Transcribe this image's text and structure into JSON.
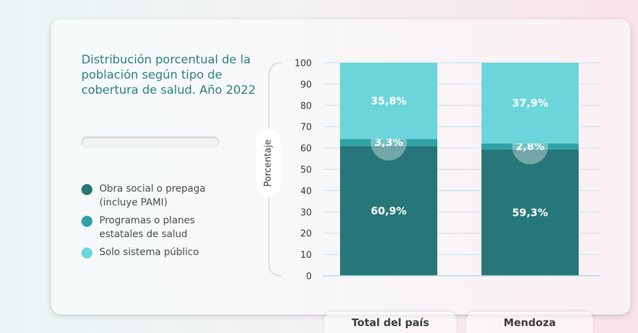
{
  "title": "Distribución porcentual de la población según tipo de cobertura de salud. Año 2022",
  "legend": [
    {
      "label": "Obra social o prepaga\n(incluye PAMI)",
      "color": "#27777a"
    },
    {
      "label": "Programas o planes\nestatales de salud",
      "color": "#2fa2a6"
    },
    {
      "label": "Solo sistema público",
      "color": "#6cd5dc"
    }
  ],
  "chart_data": {
    "type": "bar",
    "stacked": true,
    "categories": [
      "Total del país",
      "Mendoza"
    ],
    "series": [
      {
        "name": "Obra social o prepaga (incluye PAMI)",
        "values": [
          60.9,
          59.3
        ],
        "labels": [
          "60,9%",
          "59,3%"
        ],
        "color": "#27777a"
      },
      {
        "name": "Programas o planes estatales de salud",
        "values": [
          3.3,
          2.8
        ],
        "labels": [
          "3,3%",
          "2,8%"
        ],
        "color": "#2fa2a6"
      },
      {
        "name": "Solo sistema público",
        "values": [
          35.8,
          37.9
        ],
        "labels": [
          "35,8%",
          "37,9%"
        ],
        "color": "#6cd5dc"
      }
    ],
    "ylabel": "Porcentaje",
    "ylim": [
      0,
      100
    ],
    "yticks": [
      0,
      10,
      20,
      30,
      40,
      50,
      60,
      70,
      80,
      90,
      100
    ],
    "grid": true
  }
}
